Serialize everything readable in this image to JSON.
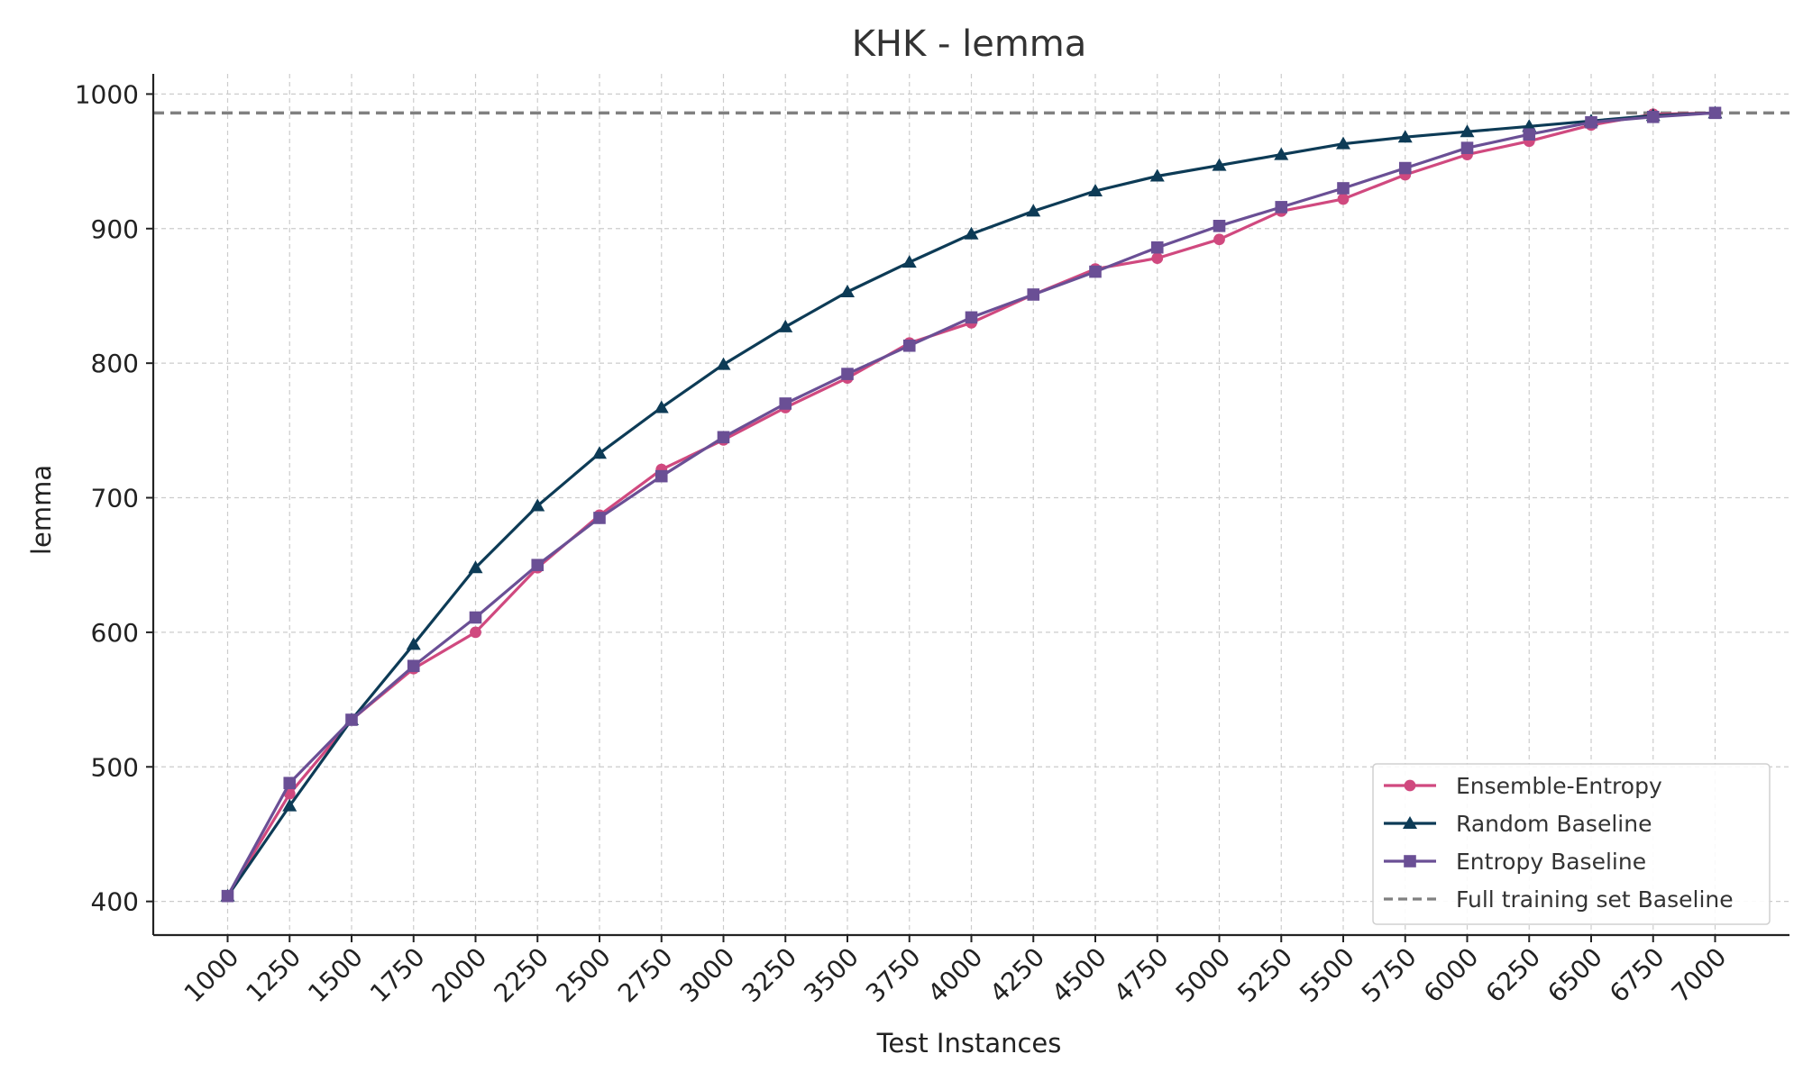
{
  "chart_data": {
    "type": "line",
    "title": "KHK - lemma",
    "xlabel": "Test Instances",
    "ylabel": "lemma",
    "x": [
      1000,
      1250,
      1500,
      1750,
      2000,
      2250,
      2500,
      2750,
      3000,
      3250,
      3500,
      3750,
      4000,
      4250,
      4500,
      4750,
      5000,
      5250,
      5500,
      5750,
      6000,
      6250,
      6500,
      6750,
      7000
    ],
    "x_tick_labels": [
      "1000",
      "1250",
      "1500",
      "1750",
      "2000",
      "2250",
      "2500",
      "2750",
      "3000",
      "3250",
      "3500",
      "3750",
      "4000",
      "4250",
      "4500",
      "4750",
      "5000",
      "5250",
      "5500",
      "5750",
      "6000",
      "6250",
      "6500",
      "6750",
      "7000"
    ],
    "y_ticks": [
      400,
      500,
      600,
      700,
      800,
      900,
      1000
    ],
    "y_tick_labels": [
      "400",
      "500",
      "600",
      "700",
      "800",
      "900",
      "1000"
    ],
    "xlim": [
      700,
      7300
    ],
    "ylim": [
      375,
      1015
    ],
    "grid": true,
    "legend_position": "lower-right",
    "series": [
      {
        "name": "Ensemble-Entropy",
        "color": "#d0497f",
        "marker": "circle",
        "values": [
          404,
          480,
          535,
          573,
          600,
          648,
          687,
          721,
          743,
          767,
          789,
          815,
          830,
          851,
          870,
          878,
          892,
          913,
          922,
          940,
          955,
          965,
          977,
          985,
          986
        ]
      },
      {
        "name": "Random Baseline",
        "color": "#0d3b56",
        "marker": "triangle",
        "values": [
          404,
          471,
          535,
          591,
          648,
          694,
          733,
          767,
          799,
          827,
          853,
          875,
          896,
          913,
          928,
          939,
          947,
          955,
          963,
          968,
          972,
          976,
          980,
          984,
          986
        ]
      },
      {
        "name": "Entropy Baseline",
        "color": "#6a4f95",
        "marker": "square",
        "values": [
          404,
          488,
          535,
          575,
          611,
          650,
          685,
          716,
          745,
          770,
          792,
          813,
          834,
          851,
          868,
          886,
          902,
          916,
          930,
          945,
          960,
          970,
          979,
          983,
          986
        ]
      }
    ],
    "reference_line": {
      "name": "Full training set Baseline",
      "value": 986,
      "color": "#808080",
      "style": "dashed"
    }
  }
}
